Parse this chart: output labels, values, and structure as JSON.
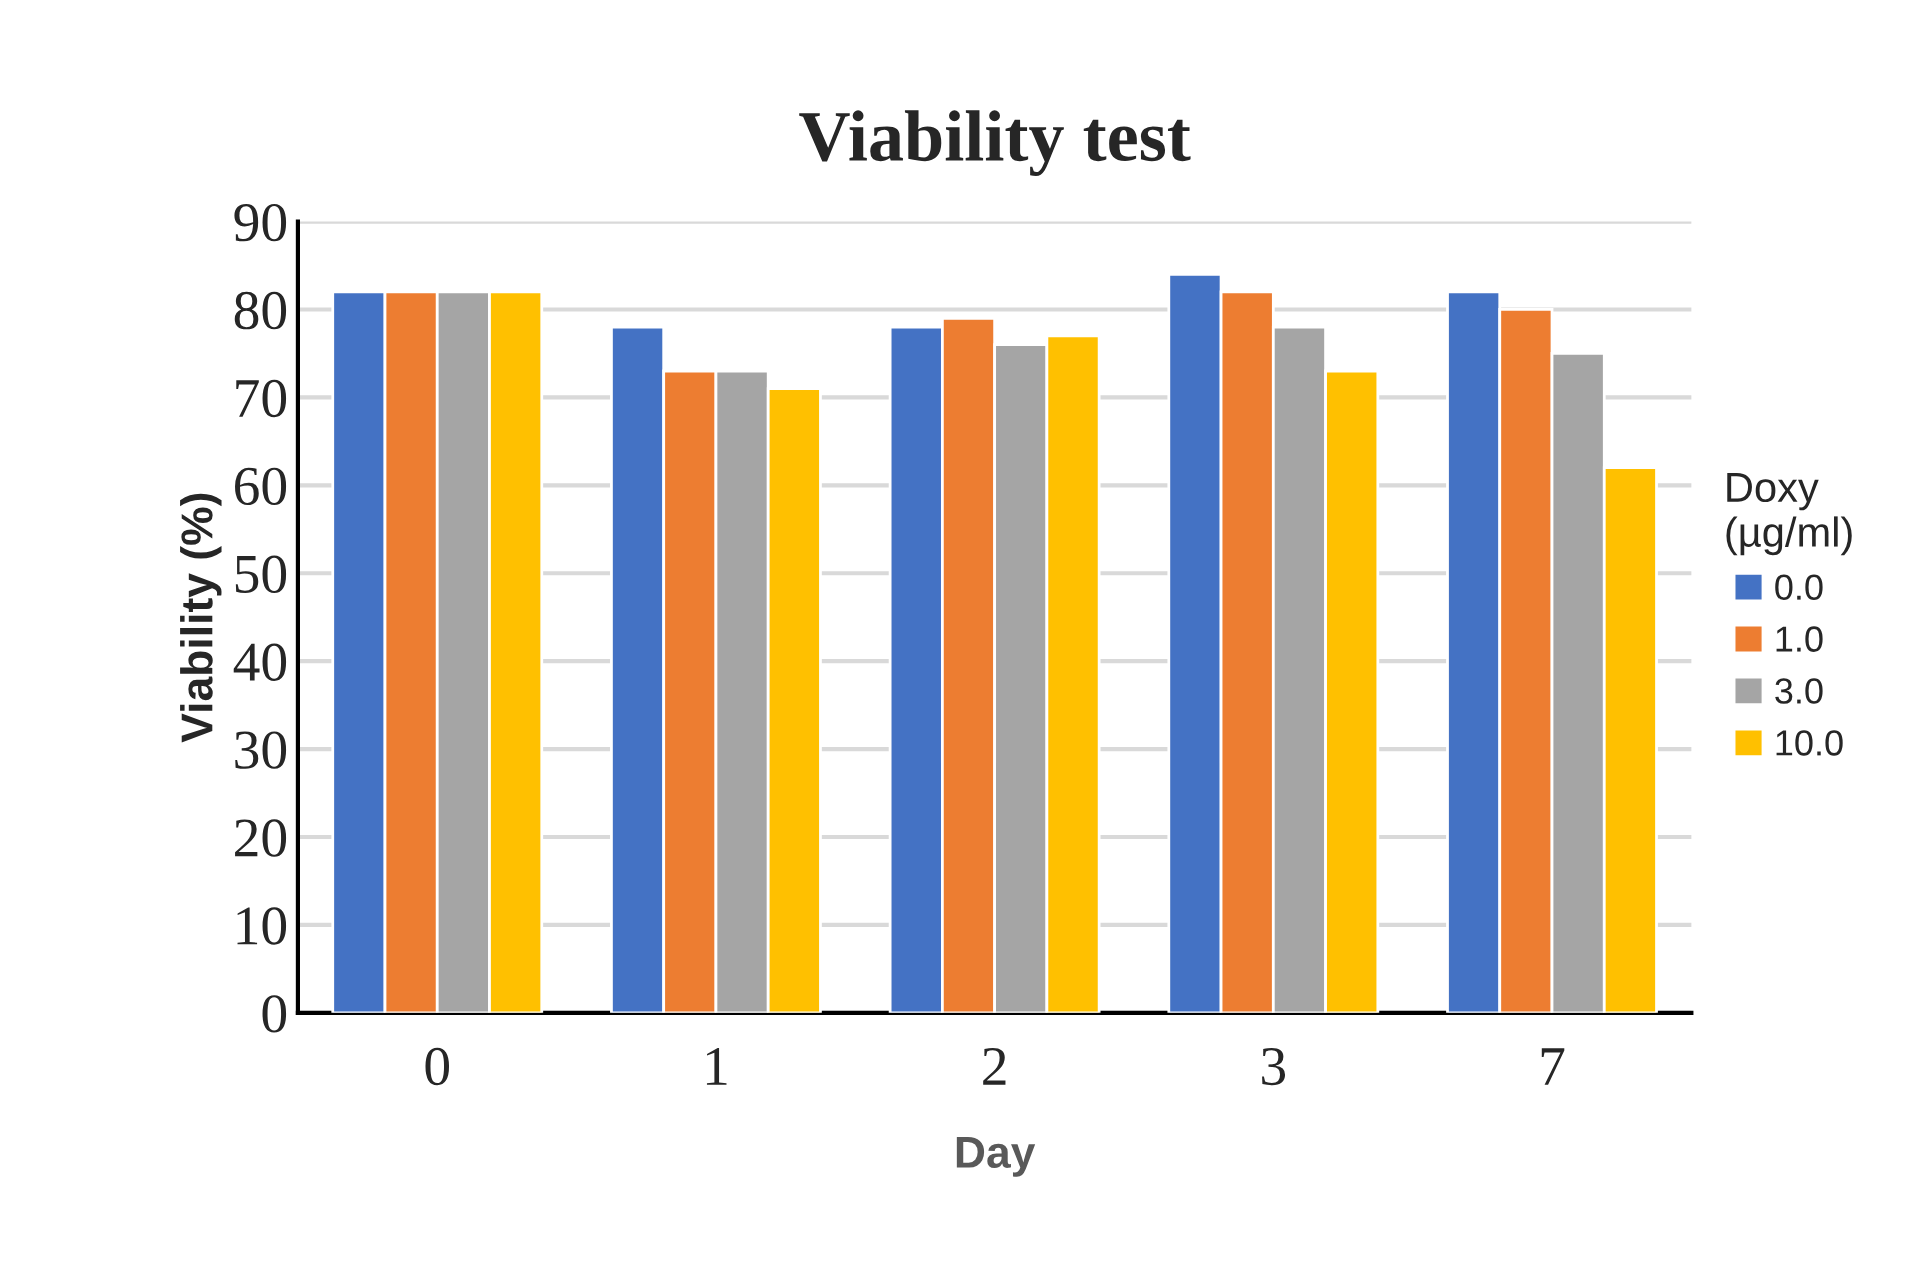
{
  "chart_data": {
    "type": "bar",
    "title": "Viability test",
    "xlabel": "Day",
    "ylabel": "Viability (%)",
    "legend_title": "Doxy\n(µg/ml)",
    "categories": [
      "0",
      "1",
      "2",
      "3",
      "7"
    ],
    "series": [
      {
        "name": "0.0",
        "color": "#4472c4",
        "values": [
          82,
          78,
          78,
          84,
          82
        ]
      },
      {
        "name": "1.0",
        "color": "#ed7d31",
        "values": [
          82,
          73,
          79,
          82,
          80
        ]
      },
      {
        "name": "3.0",
        "color": "#a5a5a5",
        "values": [
          82,
          73,
          76,
          78,
          75
        ]
      },
      {
        "name": "10.0",
        "color": "#ffc000",
        "values": [
          82,
          71,
          77,
          73,
          62
        ]
      }
    ],
    "ylim": [
      0,
      90
    ],
    "yticks": [
      0,
      10,
      20,
      30,
      40,
      50,
      60,
      70,
      80,
      90
    ],
    "grid": "y",
    "legend": "right"
  }
}
